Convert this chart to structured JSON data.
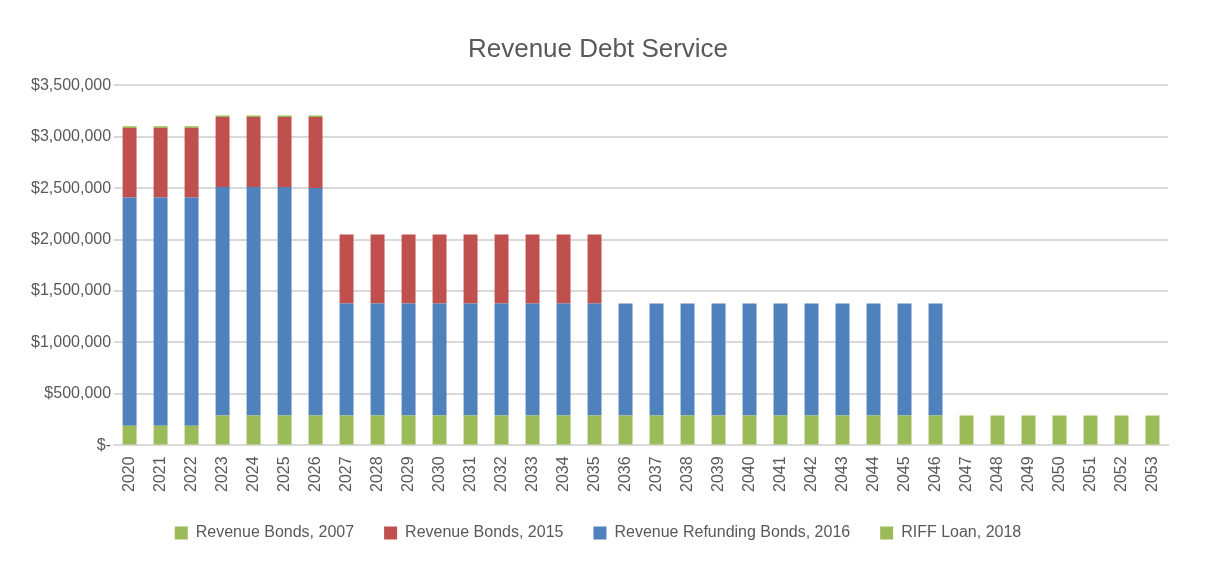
{
  "chart_data": {
    "type": "bar",
    "title": "Revenue Debt Service",
    "stacked": true,
    "legend": "bottom",
    "grid": "y",
    "categories": [
      "2020",
      "2021",
      "2022",
      "2023",
      "2024",
      "2025",
      "2026",
      "2027",
      "2028",
      "2029",
      "2030",
      "2031",
      "2032",
      "2033",
      "2034",
      "2035",
      "2036",
      "2037",
      "2038",
      "2039",
      "2040",
      "2041",
      "2042",
      "2043",
      "2044",
      "2045",
      "2046",
      "2047",
      "2048",
      "2049",
      "2050",
      "2051",
      "2052",
      "2053"
    ],
    "ylim": [
      0,
      3500000
    ],
    "yticks": [
      {
        "value": 0,
        "label": "$-"
      },
      {
        "value": 500000,
        "label": "$500,000"
      },
      {
        "value": 1000000,
        "label": "$1,000,000"
      },
      {
        "value": 1500000,
        "label": "$1,500,000"
      },
      {
        "value": 2000000,
        "label": "$2,000,000"
      },
      {
        "value": 2500000,
        "label": "$2,500,000"
      },
      {
        "value": 3000000,
        "label": "$3,000,000"
      },
      {
        "value": 3500000,
        "label": "$3,500,000"
      }
    ],
    "series": [
      {
        "name": "Revenue Bonds, 2007",
        "color": "#9bbb59",
        "values": [
          190000,
          190000,
          190000,
          290000,
          290000,
          290000,
          290000,
          290000,
          290000,
          290000,
          290000,
          290000,
          290000,
          290000,
          290000,
          290000,
          290000,
          290000,
          290000,
          290000,
          290000,
          290000,
          290000,
          290000,
          290000,
          290000,
          290000,
          290000,
          290000,
          290000,
          290000,
          290000,
          290000,
          290000
        ]
      },
      {
        "name": "Revenue Refunding Bonds, 2016",
        "color": "#4f81bd",
        "values": [
          2220000,
          2220000,
          2220000,
          2220000,
          2220000,
          2220000,
          2210000,
          1090000,
          1090000,
          1090000,
          1090000,
          1090000,
          1090000,
          1090000,
          1090000,
          1090000,
          1090000,
          1090000,
          1090000,
          1090000,
          1090000,
          1090000,
          1090000,
          1090000,
          1090000,
          1090000,
          1090000,
          null,
          null,
          null,
          null,
          null,
          null,
          null
        ]
      },
      {
        "name": "Revenue Bonds, 2015",
        "color": "#c0504d",
        "values": [
          675000,
          675000,
          675000,
          680000,
          680000,
          680000,
          690000,
          670000,
          670000,
          670000,
          670000,
          670000,
          670000,
          670000,
          670000,
          670000,
          null,
          null,
          null,
          null,
          null,
          null,
          null,
          null,
          null,
          null,
          null,
          null,
          null,
          null,
          null,
          null,
          null,
          null
        ]
      },
      {
        "name": "RIFF Loan, 2018",
        "color": "#9bbb59",
        "values": [
          15000,
          15000,
          15000,
          15000,
          15000,
          15000,
          15000,
          null,
          null,
          null,
          null,
          null,
          null,
          null,
          null,
          null,
          null,
          null,
          null,
          null,
          null,
          null,
          null,
          null,
          null,
          null,
          null,
          null,
          null,
          null,
          null,
          null,
          null,
          null
        ]
      }
    ]
  }
}
